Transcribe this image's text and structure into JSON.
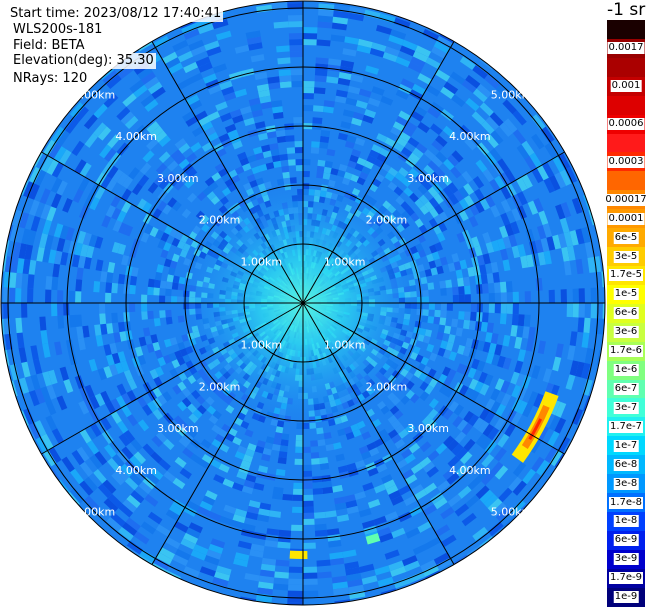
{
  "info": {
    "start_time": "Start time: 2023/08/12 17:40:41",
    "instrument": "WLS200s-181",
    "field": "Field: BETA",
    "elevation": "Elevation(deg): 35.30",
    "nrays": "NRays: 120"
  },
  "colorbar": {
    "title": "-1 sr",
    "segments": [
      {
        "color": "#1a0000",
        "label": ""
      },
      {
        "color": "#990000",
        "label": "0.0017"
      },
      {
        "color": "#aa0000",
        "label": ""
      },
      {
        "color": "#c40000",
        "label": "0.001"
      },
      {
        "color": "#dd0000",
        "label": ""
      },
      {
        "color": "#ee0000",
        "label": "0.0006"
      },
      {
        "color": "#ff1a1a",
        "label": ""
      },
      {
        "color": "#ff2a00",
        "label": "0.0003"
      },
      {
        "color": "#ff6600",
        "label": ""
      },
      {
        "color": "#ff8800",
        "label": "0.00017"
      },
      {
        "color": "#ff9900",
        "label": "0.0001"
      },
      {
        "color": "#ffaa00",
        "label": "6e-5"
      },
      {
        "color": "#ffcc00",
        "label": "3e-5"
      },
      {
        "color": "#ffe600",
        "label": "1.7e-5"
      },
      {
        "color": "#ffff00",
        "label": "1e-5"
      },
      {
        "color": "#e0ff20",
        "label": "6e-6"
      },
      {
        "color": "#c8ff40",
        "label": "3e-6"
      },
      {
        "color": "#a8ff58",
        "label": "1.7e-6"
      },
      {
        "color": "#80ff80",
        "label": "1e-6"
      },
      {
        "color": "#60ffb0",
        "label": "6e-7"
      },
      {
        "color": "#40ffd8",
        "label": "3e-7"
      },
      {
        "color": "#20f0f0",
        "label": "1.7e-7"
      },
      {
        "color": "#00d8ff",
        "label": "1e-7"
      },
      {
        "color": "#00b8ff",
        "label": "6e-8"
      },
      {
        "color": "#0098ff",
        "label": "3e-8"
      },
      {
        "color": "#0070ff",
        "label": "1.7e-8"
      },
      {
        "color": "#0040ff",
        "label": "1e-8"
      },
      {
        "color": "#0020ee",
        "label": "6e-9"
      },
      {
        "color": "#0000cc",
        "label": "3e-9"
      },
      {
        "color": "#0000a0",
        "label": "1.7e-9"
      },
      {
        "color": "#00007a",
        "label": "1e-9"
      }
    ]
  },
  "ppi": {
    "background_color": "#1e82f0",
    "ring_labels": [
      "1.00km",
      "2.00km",
      "3.00km",
      "4.00km",
      "5.00km"
    ],
    "spoke_count": 12,
    "hotspots": [
      {
        "description": "strong return band",
        "colors": [
          "#ffe600",
          "#ff8800",
          "#ff2a00"
        ]
      }
    ]
  }
}
